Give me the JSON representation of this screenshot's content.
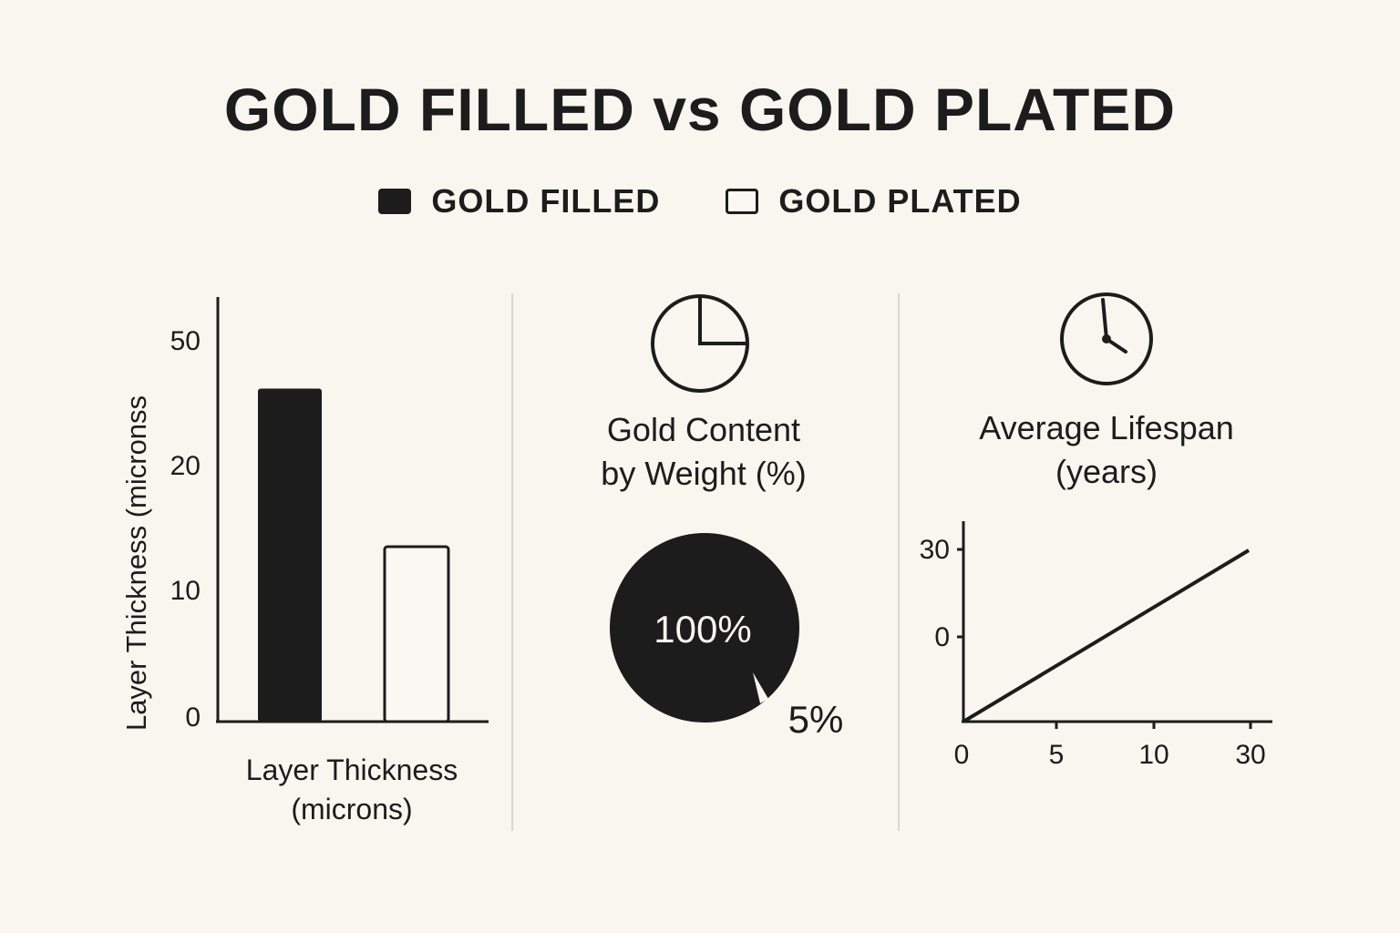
{
  "title": "GOLD FILLED vs GOLD PLATED",
  "legend": [
    {
      "label": "GOLD FILLED",
      "style": "filled"
    },
    {
      "label": "GOLD PLATED",
      "style": "outline"
    }
  ],
  "colors": {
    "background": "#f9f5ef",
    "ink": "#1c1c1c",
    "plated_fill": "#fbf8f3",
    "divider": "#dcd7cf"
  },
  "chart_data": [
    {
      "type": "bar",
      "ylabel": "Layer Thickness (micronss",
      "xlabel_lines": [
        "Layer Thickness",
        "(microns)"
      ],
      "y_ticks": [
        "50",
        "20",
        "10",
        "0"
      ],
      "series": [
        {
          "name": "GOLD FILLED",
          "style": "filled",
          "value": 38.5
        },
        {
          "name": "GOLD PLATED",
          "style": "outline",
          "value": 13.5
        }
      ],
      "ylim": [
        0,
        50
      ]
    },
    {
      "type": "pie",
      "icon": "pie-chart-icon",
      "title_lines": [
        "Gold Content",
        "by Weight (%)"
      ],
      "slices": [
        {
          "label": "100%",
          "value": 100,
          "style": "filled"
        },
        {
          "label": "5%",
          "value": 5,
          "style": "sliver"
        }
      ]
    },
    {
      "type": "line",
      "icon": "clock-icon",
      "title_lines": [
        "Average Lifespan",
        "(years)"
      ],
      "x_ticks": [
        "0",
        "5",
        "10",
        "30"
      ],
      "y_ticks": [
        "30",
        "0"
      ],
      "points": [
        {
          "x": 0,
          "y": 0
        },
        {
          "x": 30,
          "y": 30
        }
      ]
    }
  ]
}
